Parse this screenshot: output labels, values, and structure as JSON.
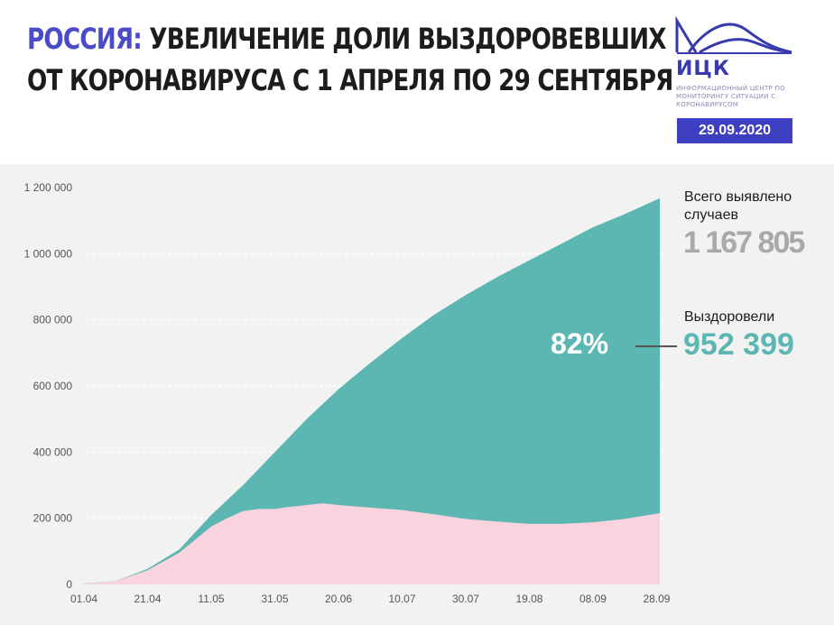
{
  "header": {
    "title_country": "РОССИЯ:",
    "title_line1_rest": " УВЕЛИЧЕНИЕ ДОЛИ ВЫЗДОРОВЕВШИХ",
    "title_line2": "ОТ КОРОНАВИРУСА С 1 АПРЕЛЯ ПО 29 СЕНТЯБРЯ",
    "logo_name": "ИЦК",
    "logo_desc": "ИНФОРМАЦИОННЫЙ ЦЕНТР ПО МОНИТОРИНГУ СИТУАЦИИ С КОРОНАВИРУСОМ",
    "date": "29.09.2020"
  },
  "stats": {
    "total_label": "Всего выявлено случаев",
    "total_value": "1 167 805",
    "recovered_label": "Выздоровели",
    "recovered_value": "952 399",
    "recovered_percent": "82%"
  },
  "colors": {
    "accent": "#4b4bc8",
    "badge": "#3f3fc4",
    "cases_fill": "#5cb7b2",
    "active_fill": "#f9d3de",
    "panel_bg": "#f2f2f2"
  },
  "chart_data": {
    "type": "area",
    "x_ticks": [
      "01.04",
      "21.04",
      "11.05",
      "31.05",
      "20.06",
      "10.07",
      "30.07",
      "19.08",
      "08.09",
      "28.09"
    ],
    "y_ticks": [
      "0",
      "200 000",
      "400 000",
      "600 000",
      "800 000",
      "1 000 000",
      "1 200 000"
    ],
    "ylim": [
      0,
      1200000
    ],
    "x_range_days": [
      0,
      181
    ],
    "grid": true,
    "series": [
      {
        "name": "Всего выявлено случаев",
        "x_days": [
          0,
          10,
          20,
          30,
          40,
          50,
          60,
          70,
          80,
          90,
          100,
          110,
          120,
          130,
          140,
          150,
          160,
          170,
          181
        ],
        "values": [
          2800,
          10000,
          47000,
          106000,
          210000,
          300000,
          400000,
          500000,
          590000,
          670000,
          745000,
          815000,
          875000,
          930000,
          980000,
          1030000,
          1080000,
          1120000,
          1167805
        ]
      },
      {
        "name": "active",
        "x_days": [
          0,
          10,
          20,
          30,
          40,
          45,
          50,
          55,
          60,
          65,
          70,
          75,
          80,
          90,
          100,
          110,
          120,
          130,
          140,
          150,
          160,
          170,
          181
        ],
        "values": [
          2500,
          9500,
          43000,
          96000,
          175000,
          200000,
          222000,
          228000,
          228000,
          235000,
          240000,
          245000,
          240000,
          232000,
          225000,
          212000,
          198000,
          190000,
          183000,
          183000,
          188000,
          198000,
          215406
        ]
      }
    ]
  }
}
